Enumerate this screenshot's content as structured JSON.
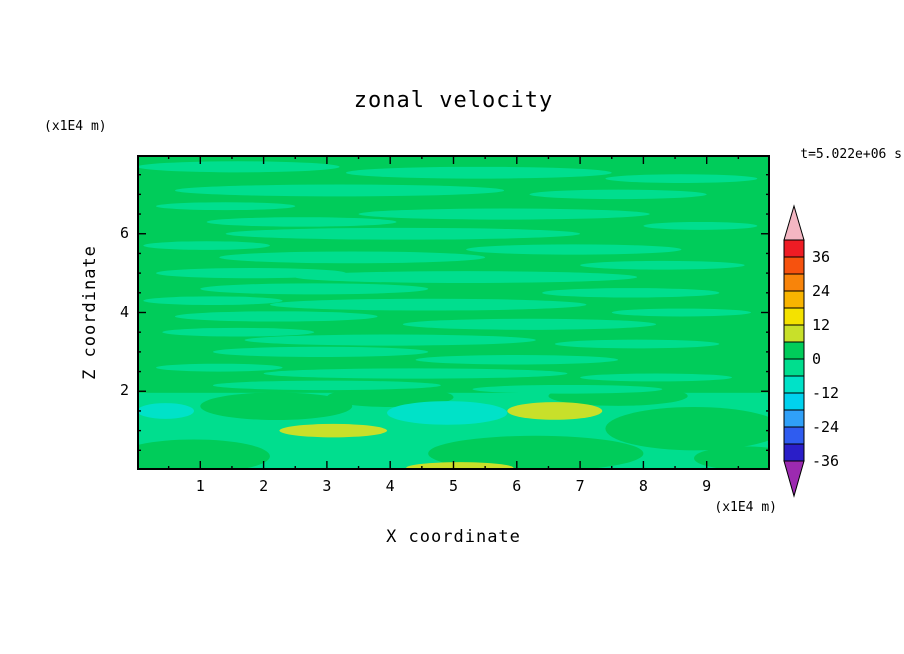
{
  "title": "zonal velocity",
  "time_label": "t=5.022e+06 s",
  "axes": {
    "x_label": "X coordinate",
    "x_unit": "(x1E4 m)",
    "y_label": "Z coordinate",
    "y_unit": "(x1E4 m)",
    "x_ticks": [
      1,
      2,
      3,
      4,
      5,
      6,
      7,
      8,
      9
    ],
    "y_ticks": [
      2,
      4,
      6
    ]
  },
  "colorbar": {
    "labels": [
      36,
      24,
      12,
      0,
      -12,
      -24,
      -36
    ],
    "value_top": 42,
    "value_step": 6,
    "arrow_top_color": "#f4b6c2",
    "arrow_bottom_color": "#9c2ab0",
    "segments": [
      {
        "band": "36:42",
        "color": "#ee1c24"
      },
      {
        "band": "30:36",
        "color": "#f6520e"
      },
      {
        "band": "24:30",
        "color": "#f8840a"
      },
      {
        "band": "18:24",
        "color": "#f8b400"
      },
      {
        "band": "12:18",
        "color": "#f4e200"
      },
      {
        "band": "6:12",
        "color": "#c8e02a"
      },
      {
        "band": "0:6",
        "color": "#00cc5a"
      },
      {
        "band": "-6:0",
        "color": "#00de8e"
      },
      {
        "band": "-12:-6",
        "color": "#00e2c8"
      },
      {
        "band": "-18:-12",
        "color": "#00d2ee"
      },
      {
        "band": "-24:-18",
        "color": "#30a0f8"
      },
      {
        "band": "-30:-24",
        "color": "#2f5cf0"
      },
      {
        "band": "-36:-30",
        "color": "#2a1ec8"
      }
    ]
  },
  "chart_data": {
    "type": "heatmap",
    "style": "filled-contour",
    "title": "zonal velocity",
    "xlabel": "X coordinate",
    "ylabel": "Z coordinate",
    "units": "(x1E4 m)",
    "time_annotation": "t=5.022e+06 s",
    "x_range": [
      0,
      10
    ],
    "z_range": [
      0,
      8
    ],
    "contour_levels": [
      -36,
      -30,
      -24,
      -18,
      -12,
      -6,
      0,
      6,
      12,
      18,
      24,
      30,
      36
    ],
    "background_band": "0:6",
    "features": [
      {
        "band": "-6:0",
        "shape": "rect",
        "x": 5.0,
        "z": 0.98,
        "w": 10.0,
        "h": 1.96
      },
      {
        "band": "0:6",
        "x": 0.9,
        "z": 0.35,
        "w": 2.4,
        "h": 0.85
      },
      {
        "band": "0:6",
        "x": 2.2,
        "z": 1.62,
        "w": 2.4,
        "h": 0.7
      },
      {
        "band": "0:6",
        "x": 6.3,
        "z": 0.42,
        "w": 3.4,
        "h": 0.9
      },
      {
        "band": "0:6",
        "x": 8.8,
        "z": 1.05,
        "w": 2.8,
        "h": 1.1
      },
      {
        "band": "0:6",
        "x": 4.0,
        "z": 1.85,
        "w": 2.0,
        "h": 0.5
      },
      {
        "band": "0:6",
        "x": 7.6,
        "z": 1.88,
        "w": 2.2,
        "h": 0.5
      },
      {
        "band": "0:6",
        "x": 9.6,
        "z": 0.3,
        "w": 1.6,
        "h": 0.6
      },
      {
        "band": "-12:-6",
        "x": 4.9,
        "z": 1.45,
        "w": 1.9,
        "h": 0.6
      },
      {
        "band": "-12:-6",
        "x": 0.45,
        "z": 1.5,
        "w": 0.9,
        "h": 0.4
      },
      {
        "band": "6:12",
        "x": 3.1,
        "z": 1.0,
        "w": 1.7,
        "h": 0.34
      },
      {
        "band": "6:12",
        "x": 6.6,
        "z": 1.5,
        "w": 1.5,
        "h": 0.45
      },
      {
        "band": "6:12",
        "x": 5.1,
        "z": 0.05,
        "w": 1.7,
        "h": 0.3
      },
      {
        "band": "-6:0",
        "x": 1.6,
        "z": 7.7,
        "w": 3.2,
        "h": 0.28
      },
      {
        "band": "-6:0",
        "x": 5.4,
        "z": 7.55,
        "w": 4.2,
        "h": 0.3
      },
      {
        "band": "-6:0",
        "x": 8.6,
        "z": 7.4,
        "w": 2.4,
        "h": 0.22
      },
      {
        "band": "-6:0",
        "x": 3.2,
        "z": 7.1,
        "w": 5.2,
        "h": 0.3
      },
      {
        "band": "-6:0",
        "x": 7.6,
        "z": 7.0,
        "w": 2.8,
        "h": 0.24
      },
      {
        "band": "-6:0",
        "x": 1.4,
        "z": 6.7,
        "w": 2.2,
        "h": 0.2
      },
      {
        "band": "-6:0",
        "x": 5.8,
        "z": 6.5,
        "w": 4.6,
        "h": 0.28
      },
      {
        "band": "-6:0",
        "x": 2.6,
        "z": 6.3,
        "w": 3.0,
        "h": 0.24
      },
      {
        "band": "-6:0",
        "x": 8.9,
        "z": 6.2,
        "w": 1.8,
        "h": 0.2
      },
      {
        "band": "-6:0",
        "x": 4.2,
        "z": 6.0,
        "w": 5.6,
        "h": 0.3
      },
      {
        "band": "-6:0",
        "x": 1.1,
        "z": 5.7,
        "w": 2.0,
        "h": 0.22
      },
      {
        "band": "-6:0",
        "x": 6.9,
        "z": 5.6,
        "w": 3.4,
        "h": 0.26
      },
      {
        "band": "-6:0",
        "x": 3.4,
        "z": 5.4,
        "w": 4.2,
        "h": 0.3
      },
      {
        "band": "-6:0",
        "x": 8.3,
        "z": 5.2,
        "w": 2.6,
        "h": 0.22
      },
      {
        "band": "-6:0",
        "x": 1.8,
        "z": 5.0,
        "w": 3.0,
        "h": 0.26
      },
      {
        "band": "-6:0",
        "x": 5.2,
        "z": 4.9,
        "w": 5.4,
        "h": 0.3
      },
      {
        "band": "-6:0",
        "x": 2.8,
        "z": 4.6,
        "w": 3.6,
        "h": 0.28
      },
      {
        "band": "-6:0",
        "x": 7.8,
        "z": 4.5,
        "w": 2.8,
        "h": 0.24
      },
      {
        "band": "-6:0",
        "x": 1.2,
        "z": 4.3,
        "w": 2.2,
        "h": 0.22
      },
      {
        "band": "-6:0",
        "x": 4.6,
        "z": 4.2,
        "w": 5.0,
        "h": 0.3
      },
      {
        "band": "-6:0",
        "x": 8.6,
        "z": 4.0,
        "w": 2.2,
        "h": 0.2
      },
      {
        "band": "-6:0",
        "x": 2.2,
        "z": 3.9,
        "w": 3.2,
        "h": 0.26
      },
      {
        "band": "-6:0",
        "x": 6.2,
        "z": 3.7,
        "w": 4.0,
        "h": 0.28
      },
      {
        "band": "-6:0",
        "x": 1.6,
        "z": 3.5,
        "w": 2.4,
        "h": 0.22
      },
      {
        "band": "-6:0",
        "x": 4.0,
        "z": 3.3,
        "w": 4.6,
        "h": 0.28
      },
      {
        "band": "-6:0",
        "x": 7.9,
        "z": 3.2,
        "w": 2.6,
        "h": 0.22
      },
      {
        "band": "-6:0",
        "x": 2.9,
        "z": 3.0,
        "w": 3.4,
        "h": 0.26
      },
      {
        "band": "-6:0",
        "x": 6.0,
        "z": 2.8,
        "w": 3.2,
        "h": 0.24
      },
      {
        "band": "-6:0",
        "x": 1.3,
        "z": 2.6,
        "w": 2.0,
        "h": 0.2
      },
      {
        "band": "-6:0",
        "x": 4.4,
        "z": 2.45,
        "w": 4.8,
        "h": 0.26
      },
      {
        "band": "-6:0",
        "x": 8.2,
        "z": 2.35,
        "w": 2.4,
        "h": 0.2
      },
      {
        "band": "-6:0",
        "x": 3.0,
        "z": 2.15,
        "w": 3.6,
        "h": 0.24
      },
      {
        "band": "-6:0",
        "x": 6.8,
        "z": 2.05,
        "w": 3.0,
        "h": 0.22
      }
    ]
  }
}
